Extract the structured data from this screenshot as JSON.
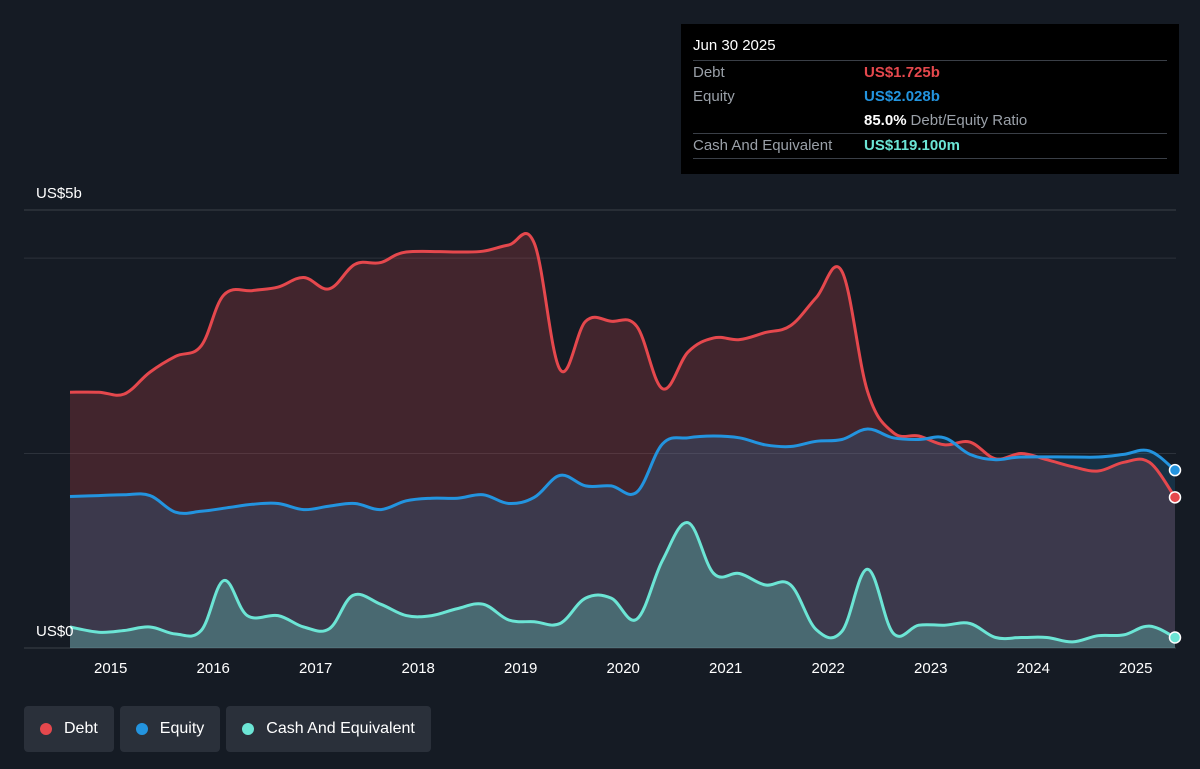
{
  "tooltip": {
    "date": "Jun 30 2025",
    "debt_label": "Debt",
    "debt_value": "US$1.725b",
    "equity_label": "Equity",
    "equity_value": "US$2.028b",
    "ratio_value": "85.0%",
    "ratio_label": "Debt/Equity Ratio",
    "cash_label": "Cash And Equivalent",
    "cash_value": "US$119.100m"
  },
  "legend": {
    "debt": "Debt",
    "equity": "Equity",
    "cash": "Cash And Equivalent"
  },
  "colors": {
    "debt": "#e5484d",
    "equity": "#2394df",
    "cash": "#6ce5d5",
    "background": "#151b24"
  },
  "chart_data": {
    "type": "area",
    "title": "",
    "xlabel": "",
    "ylabel": "",
    "ylim": [
      0,
      5
    ],
    "xlim": [
      2014.72,
      2025.5
    ],
    "y_tick_labels": [
      {
        "value": 5,
        "label": "US$5b"
      },
      {
        "value": 0,
        "label": "US$0"
      }
    ],
    "gridlines": [
      4.45,
      2.22
    ],
    "x_ticks": [
      2015,
      2016,
      2017,
      2018,
      2019,
      2020,
      2021,
      2022,
      2023,
      2024,
      2025
    ],
    "series": [
      {
        "name": "Debt",
        "color": "#e5484d",
        "points": [
          [
            2014.72,
            2.92
          ],
          [
            2015.0,
            2.92
          ],
          [
            2015.25,
            2.9
          ],
          [
            2015.5,
            3.15
          ],
          [
            2015.75,
            3.33
          ],
          [
            2016.0,
            3.45
          ],
          [
            2016.22,
            4.03
          ],
          [
            2016.5,
            4.08
          ],
          [
            2016.75,
            4.12
          ],
          [
            2017.0,
            4.23
          ],
          [
            2017.25,
            4.1
          ],
          [
            2017.5,
            4.38
          ],
          [
            2017.75,
            4.4
          ],
          [
            2018.0,
            4.52
          ],
          [
            2018.5,
            4.52
          ],
          [
            2018.75,
            4.53
          ],
          [
            2019.0,
            4.6
          ],
          [
            2019.25,
            4.62
          ],
          [
            2019.5,
            3.18
          ],
          [
            2019.75,
            3.73
          ],
          [
            2020.0,
            3.73
          ],
          [
            2020.25,
            3.67
          ],
          [
            2020.5,
            2.96
          ],
          [
            2020.75,
            3.38
          ],
          [
            2021.0,
            3.54
          ],
          [
            2021.25,
            3.52
          ],
          [
            2021.5,
            3.6
          ],
          [
            2021.75,
            3.68
          ],
          [
            2022.0,
            4.0
          ],
          [
            2022.25,
            4.3
          ],
          [
            2022.5,
            2.93
          ],
          [
            2022.75,
            2.46
          ],
          [
            2023.0,
            2.42
          ],
          [
            2023.25,
            2.32
          ],
          [
            2023.5,
            2.35
          ],
          [
            2023.75,
            2.16
          ],
          [
            2024.0,
            2.22
          ],
          [
            2024.25,
            2.15
          ],
          [
            2024.5,
            2.07
          ],
          [
            2024.75,
            2.02
          ],
          [
            2025.0,
            2.12
          ],
          [
            2025.25,
            2.12
          ],
          [
            2025.5,
            1.72
          ]
        ]
      },
      {
        "name": "Equity",
        "color": "#2394df",
        "points": [
          [
            2014.72,
            1.73
          ],
          [
            2015.0,
            1.74
          ],
          [
            2015.25,
            1.75
          ],
          [
            2015.5,
            1.74
          ],
          [
            2015.75,
            1.55
          ],
          [
            2016.0,
            1.56
          ],
          [
            2016.25,
            1.6
          ],
          [
            2016.5,
            1.64
          ],
          [
            2016.75,
            1.65
          ],
          [
            2017.0,
            1.58
          ],
          [
            2017.25,
            1.62
          ],
          [
            2017.5,
            1.65
          ],
          [
            2017.75,
            1.58
          ],
          [
            2018.0,
            1.68
          ],
          [
            2018.25,
            1.71
          ],
          [
            2018.5,
            1.71
          ],
          [
            2018.75,
            1.75
          ],
          [
            2019.0,
            1.65
          ],
          [
            2019.25,
            1.72
          ],
          [
            2019.5,
            1.97
          ],
          [
            2019.75,
            1.85
          ],
          [
            2020.0,
            1.85
          ],
          [
            2020.25,
            1.78
          ],
          [
            2020.5,
            2.33
          ],
          [
            2020.75,
            2.4
          ],
          [
            2021.0,
            2.42
          ],
          [
            2021.25,
            2.4
          ],
          [
            2021.5,
            2.32
          ],
          [
            2021.75,
            2.3
          ],
          [
            2022.0,
            2.36
          ],
          [
            2022.25,
            2.38
          ],
          [
            2022.5,
            2.5
          ],
          [
            2022.75,
            2.4
          ],
          [
            2023.0,
            2.38
          ],
          [
            2023.25,
            2.4
          ],
          [
            2023.5,
            2.21
          ],
          [
            2023.75,
            2.15
          ],
          [
            2024.0,
            2.18
          ],
          [
            2024.5,
            2.18
          ],
          [
            2024.75,
            2.18
          ],
          [
            2025.0,
            2.21
          ],
          [
            2025.25,
            2.25
          ],
          [
            2025.5,
            2.03
          ]
        ]
      },
      {
        "name": "Cash And Equivalent",
        "color": "#6ce5d5",
        "points": [
          [
            2014.72,
            0.24
          ],
          [
            2015.0,
            0.18
          ],
          [
            2015.25,
            0.2
          ],
          [
            2015.5,
            0.24
          ],
          [
            2015.75,
            0.16
          ],
          [
            2016.0,
            0.2
          ],
          [
            2016.22,
            0.77
          ],
          [
            2016.45,
            0.37
          ],
          [
            2016.75,
            0.37
          ],
          [
            2017.0,
            0.24
          ],
          [
            2017.25,
            0.22
          ],
          [
            2017.48,
            0.6
          ],
          [
            2017.75,
            0.5
          ],
          [
            2018.0,
            0.37
          ],
          [
            2018.25,
            0.37
          ],
          [
            2018.5,
            0.45
          ],
          [
            2018.75,
            0.5
          ],
          [
            2019.0,
            0.32
          ],
          [
            2019.25,
            0.3
          ],
          [
            2019.5,
            0.28
          ],
          [
            2019.75,
            0.57
          ],
          [
            2020.0,
            0.57
          ],
          [
            2020.25,
            0.33
          ],
          [
            2020.5,
            1.0
          ],
          [
            2020.75,
            1.43
          ],
          [
            2021.0,
            0.85
          ],
          [
            2021.25,
            0.85
          ],
          [
            2021.5,
            0.72
          ],
          [
            2021.75,
            0.72
          ],
          [
            2022.0,
            0.21
          ],
          [
            2022.25,
            0.19
          ],
          [
            2022.5,
            0.9
          ],
          [
            2022.75,
            0.17
          ],
          [
            2023.0,
            0.26
          ],
          [
            2023.25,
            0.26
          ],
          [
            2023.5,
            0.28
          ],
          [
            2023.75,
            0.12
          ],
          [
            2024.0,
            0.12
          ],
          [
            2024.25,
            0.12
          ],
          [
            2024.5,
            0.07
          ],
          [
            2024.75,
            0.14
          ],
          [
            2025.0,
            0.15
          ],
          [
            2025.25,
            0.25
          ],
          [
            2025.5,
            0.12
          ]
        ]
      }
    ]
  }
}
